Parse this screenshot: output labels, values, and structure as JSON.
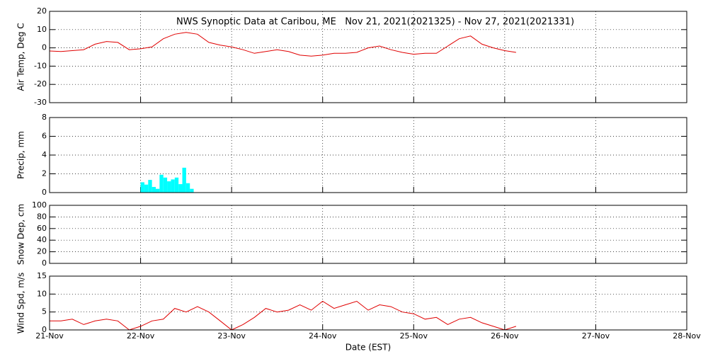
{
  "chart_data": [
    {
      "type": "line",
      "title": "NWS Synoptic Data at Caribou, ME   Nov 21, 2021(2021325) - Nov 27, 2021(2021331)",
      "ylabel": "Air Temp, Deg C",
      "x": [
        0,
        3,
        6,
        9,
        12,
        15,
        18,
        21,
        24,
        27,
        30,
        33,
        36,
        39,
        42,
        45,
        48,
        51,
        54,
        57,
        60,
        63,
        66,
        69,
        72,
        75,
        78,
        81,
        84,
        87,
        90,
        93,
        96,
        99,
        102,
        105,
        108,
        111,
        114,
        117,
        120,
        123
      ],
      "series": [
        {
          "name": "Air Temp",
          "color": "#e00000",
          "values": [
            -1.7,
            -2,
            -1.5,
            -1,
            2,
            3.5,
            3,
            -1,
            -0.5,
            0.5,
            5,
            7.5,
            8.5,
            7.5,
            3,
            1.5,
            0.5,
            -1,
            -3,
            -2,
            -1,
            -2,
            -4,
            -4.5,
            -4,
            -3,
            -3,
            -2.5,
            0,
            1,
            -1,
            -2.5,
            -3.5,
            -3,
            -3,
            1,
            5,
            6.5,
            2,
            0,
            -1.5,
            -2.5
          ]
        }
      ],
      "xlim": [
        0,
        168
      ],
      "xticks": [
        0,
        24,
        48,
        72,
        96,
        120,
        144,
        168
      ],
      "ylim": [
        -30,
        20
      ],
      "yticks": [
        20,
        10,
        0,
        -10,
        -20,
        -30
      ],
      "grid": true
    },
    {
      "type": "bar",
      "ylabel": "Precip, mm",
      "x": [
        24,
        25,
        26,
        27,
        28,
        29,
        30,
        31,
        32,
        33,
        34,
        35,
        36,
        37
      ],
      "color": "#00ffff",
      "values": [
        1.1,
        0.85,
        1.35,
        0.6,
        0.4,
        1.9,
        1.6,
        1.2,
        1.4,
        1.6,
        0.9,
        2.65,
        1.0,
        0.4
      ],
      "xlim": [
        0,
        168
      ],
      "xticks": [
        0,
        24,
        48,
        72,
        96,
        120,
        144,
        168
      ],
      "ylim": [
        0,
        8
      ],
      "yticks": [
        8,
        6,
        4,
        2,
        0
      ],
      "grid": true
    },
    {
      "type": "line",
      "ylabel": "Snow Dep, cm",
      "xlim": [
        0,
        168
      ],
      "xticks": [
        0,
        24,
        48,
        72,
        96,
        120,
        144,
        168
      ],
      "ylim": [
        0,
        100
      ],
      "yticks": [
        100,
        80,
        60,
        40,
        20,
        0
      ],
      "grid": true
    },
    {
      "type": "line",
      "ylabel": "Wind Spd, m/s",
      "xlabel": "Date (EST)",
      "x": [
        0,
        3,
        6,
        9,
        12,
        15,
        18,
        21,
        24,
        27,
        30,
        33,
        36,
        39,
        42,
        45,
        48,
        51,
        54,
        57,
        60,
        63,
        66,
        69,
        72,
        75,
        78,
        81,
        84,
        87,
        90,
        93,
        96,
        99,
        102,
        105,
        108,
        111,
        114,
        117,
        120,
        123
      ],
      "series": [
        {
          "name": "Wind Spd",
          "color": "#e00000",
          "values": [
            2.5,
            2.5,
            3,
            1.5,
            2.5,
            3,
            2.5,
            0,
            1,
            2.5,
            3,
            6,
            5,
            6.5,
            5,
            2.5,
            0,
            1.5,
            3.5,
            6,
            5,
            5.5,
            7,
            5.5,
            8,
            6,
            7,
            8,
            5.5,
            7,
            6.5,
            5,
            4.5,
            3,
            3.5,
            1.5,
            3,
            3.5,
            2,
            1,
            0,
            1
          ]
        }
      ],
      "xlim": [
        0,
        168
      ],
      "xticks": [
        {
          "value": 0,
          "label": "21-Nov"
        },
        {
          "value": 24,
          "label": "22-Nov"
        },
        {
          "value": 48,
          "label": "23-Nov"
        },
        {
          "value": 72,
          "label": "24-Nov"
        },
        {
          "value": 96,
          "label": "25-Nov"
        },
        {
          "value": 120,
          "label": "26-Nov"
        },
        {
          "value": 144,
          "label": "27-Nov"
        },
        {
          "value": 168,
          "label": "28-Nov"
        }
      ],
      "ylim": [
        0,
        15
      ],
      "yticks": [
        15,
        10,
        5,
        0
      ],
      "grid": true
    }
  ]
}
